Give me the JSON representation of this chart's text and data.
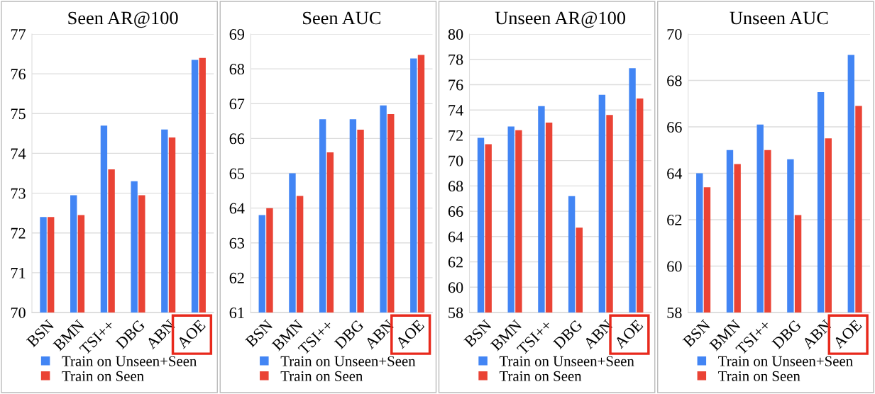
{
  "chart_data": [
    {
      "type": "bar",
      "title": "Seen AR@100",
      "categories": [
        "BSN",
        "BMN",
        "TSI++",
        "DBG",
        "ABN",
        "AOE"
      ],
      "series": [
        {
          "name": "Train on Unseen+Seen",
          "color": "#4285f4",
          "values": [
            72.4,
            72.95,
            74.7,
            73.3,
            74.6,
            76.35
          ]
        },
        {
          "name": "Train on Seen",
          "color": "#ea4335",
          "values": [
            72.4,
            72.45,
            73.6,
            72.95,
            74.4,
            76.4
          ]
        }
      ],
      "ylim": [
        70,
        77
      ],
      "yticks": [
        70,
        71,
        72,
        73,
        74,
        75,
        76,
        77
      ],
      "grid": "y",
      "legend": "bottom"
    },
    {
      "type": "bar",
      "title": "Seen AUC",
      "categories": [
        "BSN",
        "BMN",
        "TSI++",
        "DBG",
        "ABN",
        "AOE"
      ],
      "series": [
        {
          "name": "Train on Unseen+Seen",
          "color": "#4285f4",
          "values": [
            63.8,
            65.0,
            66.55,
            66.55,
            66.95,
            68.3
          ]
        },
        {
          "name": "Train on Seen",
          "color": "#ea4335",
          "values": [
            64.0,
            64.35,
            65.6,
            66.25,
            66.7,
            68.4
          ]
        }
      ],
      "ylim": [
        61,
        69
      ],
      "yticks": [
        61,
        62,
        63,
        64,
        65,
        66,
        67,
        68,
        69
      ],
      "grid": "y",
      "legend": "bottom"
    },
    {
      "type": "bar",
      "title": "Unseen AR@100",
      "categories": [
        "BSN",
        "BMN",
        "TSI++",
        "DBG",
        "ABN",
        "AOE"
      ],
      "series": [
        {
          "name": "Train on Unseen+Seen",
          "color": "#4285f4",
          "values": [
            71.8,
            72.7,
            74.3,
            67.2,
            75.2,
            77.3
          ]
        },
        {
          "name": "Train on Seen",
          "color": "#ea4335",
          "values": [
            71.3,
            72.4,
            73.0,
            64.7,
            73.6,
            74.9
          ]
        }
      ],
      "ylim": [
        58,
        80
      ],
      "yticks": [
        58,
        60,
        62,
        64,
        66,
        68,
        70,
        72,
        74,
        76,
        78,
        80
      ],
      "grid": "y",
      "legend": "bottom"
    },
    {
      "type": "bar",
      "title": "Unseen AUC",
      "categories": [
        "BSN",
        "BMN",
        "TSI++",
        "DBG",
        "ABN",
        "AOE"
      ],
      "series": [
        {
          "name": "Train on Unseen+Seen",
          "color": "#4285f4",
          "values": [
            64.0,
            65.0,
            66.1,
            64.6,
            67.5,
            69.1
          ]
        },
        {
          "name": "Train on Seen",
          "color": "#ea4335",
          "values": [
            63.4,
            64.4,
            65.0,
            62.2,
            65.5,
            66.9
          ]
        }
      ],
      "ylim": [
        58,
        70
      ],
      "yticks": [
        58,
        60,
        62,
        64,
        66,
        68,
        70
      ],
      "grid": "y",
      "legend": "bottom"
    }
  ]
}
